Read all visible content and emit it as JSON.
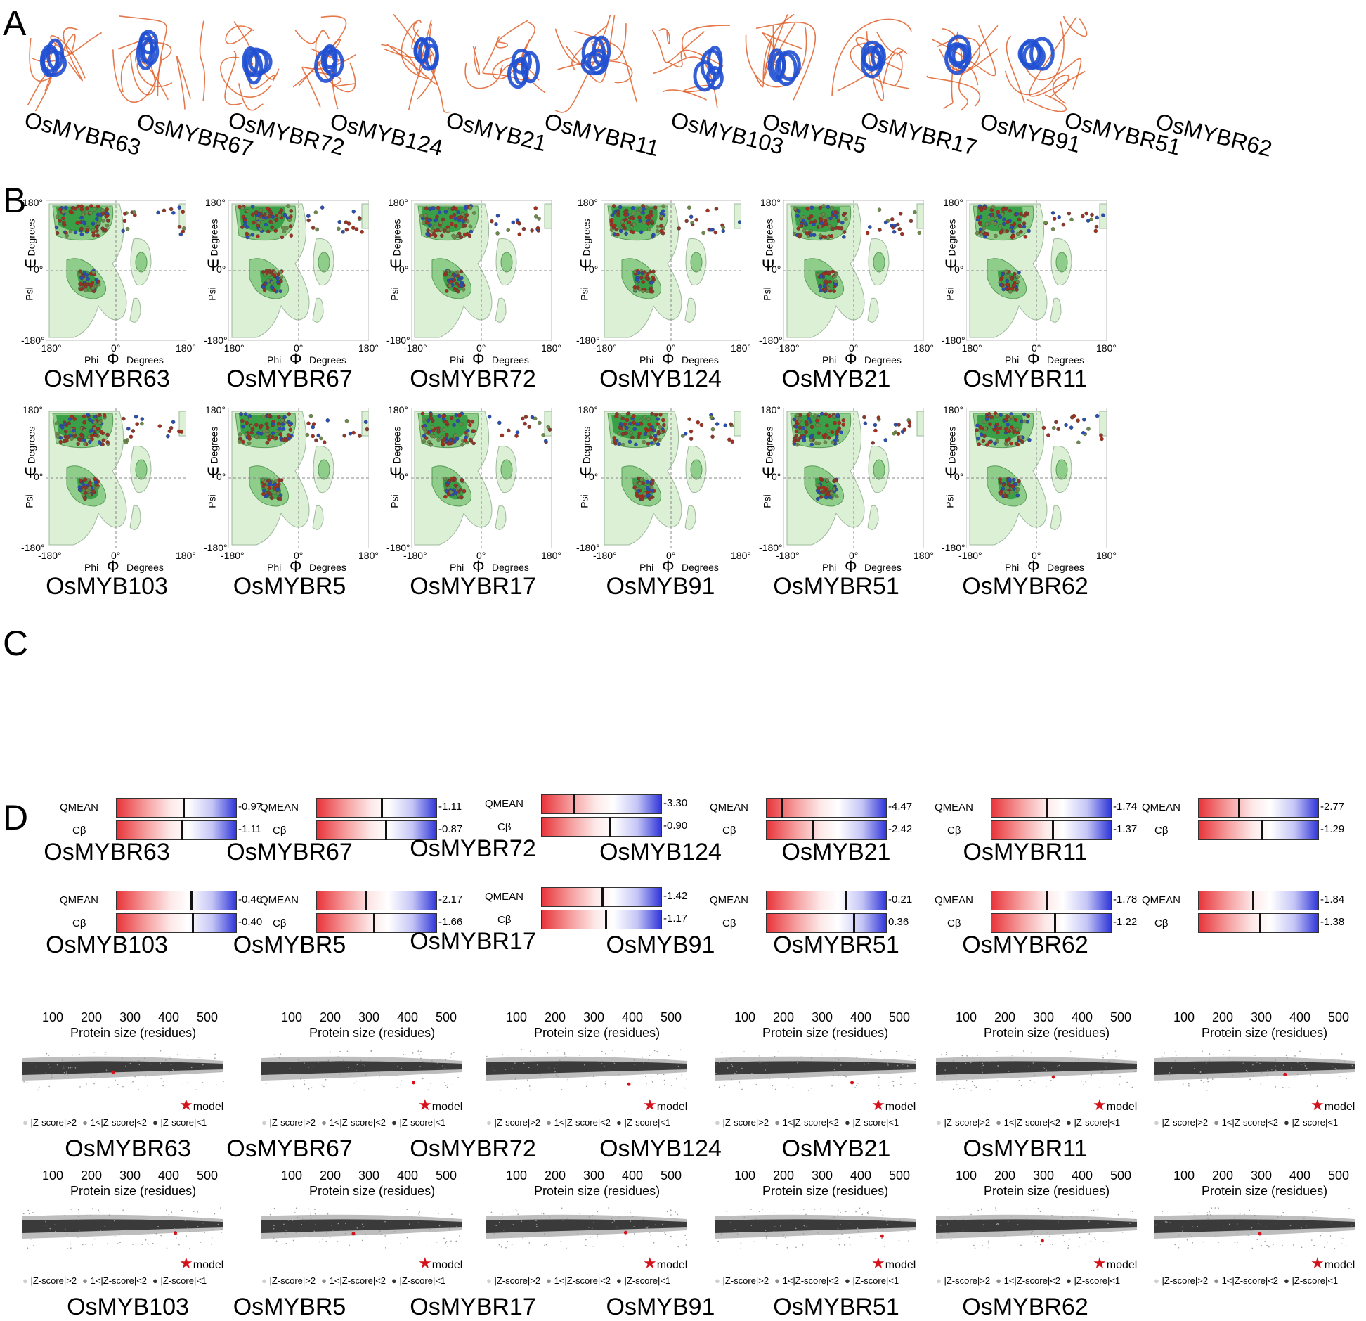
{
  "panels": {
    "a": "A",
    "b": "B",
    "c": "C",
    "d": "D"
  },
  "proteins_row_a": [
    "OsMYBR63",
    "OsMYBR67",
    "OsMYBR72",
    "OsMYB124",
    "OsMYB21",
    "OsMYBR11",
    "OsMYB103",
    "OsMYBR5",
    "OsMYBR17",
    "OsMYB91",
    "OsMYBR51",
    "OsMYBR62"
  ],
  "rama": {
    "psi_top": "180°",
    "psi_zero": "0°",
    "psi_bottom": "-180°",
    "phi_left": "-180°",
    "phi_zero": "0°",
    "phi_right": "180°",
    "psi_symbol": "Ψ",
    "phi_symbol": "Φ",
    "psi_word": "Psi",
    "phi_word": "Phi",
    "degrees": "Degrees",
    "names": [
      "OsMYBR63",
      "OsMYBR67",
      "OsMYBR72",
      "OsMYB124",
      "OsMYB21",
      "OsMYBR11",
      "OsMYB103",
      "OsMYBR5",
      "OsMYBR17",
      "OsMYB91",
      "OsMYBR51",
      "OsMYBR62"
    ]
  },
  "qmean": {
    "label_q": "QMEAN",
    "label_c": "Cβ",
    "items": [
      {
        "name": "OsMYBR63",
        "q": "-0.97",
        "c": "-1.11"
      },
      {
        "name": "OsMYBR67",
        "q": "-1.11",
        "c": "-0.87"
      },
      {
        "name": "OsMYBR72",
        "q": "-3.30",
        "c": "-0.90"
      },
      {
        "name": "OsMYB124",
        "q": "-4.47",
        "c": "-2.42"
      },
      {
        "name": "OsMYB21",
        "q": "-1.74",
        "c": "-1.37"
      },
      {
        "name": "OsMYBR11",
        "q": "-2.77",
        "c": "-1.29"
      },
      {
        "name": "OsMYB103",
        "q": "-0.46",
        "c": "-0.40"
      },
      {
        "name": "OsMYBR5",
        "q": "-2.17",
        "c": "-1.66"
      },
      {
        "name": "OsMYBR17",
        "q": "-1.42",
        "c": "-1.17"
      },
      {
        "name": "OsMYB91",
        "q": "-0.21",
        "c": "0.36"
      },
      {
        "name": "OsMYBR51",
        "q": "-1.78",
        "c": "-1.22"
      },
      {
        "name": "OsMYBR62",
        "q": "-1.84",
        "c": "-1.38"
      }
    ]
  },
  "zscore": {
    "ticks": [
      "100",
      "200",
      "300",
      "400",
      "500"
    ],
    "xlabel": "Protein size (residues)",
    "model": "model",
    "legend": [
      "|Z-score|>2",
      "1<|Z-score|<2",
      "|Z-score|<1"
    ],
    "names": [
      "OsMYBR63",
      "OsMYBR67",
      "OsMYBR72",
      "OsMYB124",
      "OsMYB21",
      "OsMYBR11",
      "OsMYB103",
      "OsMYBR5",
      "OsMYBR17",
      "OsMYB91",
      "OsMYBR51",
      "OsMYBR62"
    ]
  },
  "colors": {
    "helix": "#1f4fd1",
    "coil": "#e0602a",
    "green_dark": "#3aa048",
    "green_mid": "#8fce8a",
    "green_light": "#dcf0d5"
  }
}
